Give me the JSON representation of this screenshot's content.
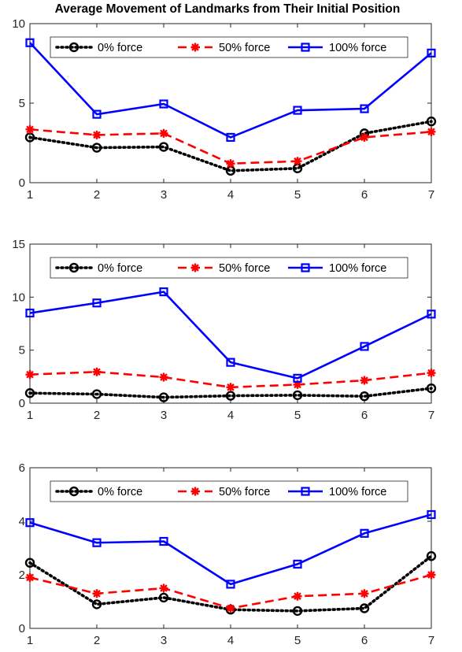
{
  "chart_data": [
    {
      "type": "line",
      "title": "Average Movement of Landmarks from Their Initial Position",
      "x": [
        1,
        2,
        3,
        4,
        5,
        6,
        7
      ],
      "xlim": [
        1,
        7
      ],
      "ylim": [
        0,
        10
      ],
      "xticks": [
        "1",
        "2",
        "3",
        "4",
        "5",
        "6",
        "7"
      ],
      "yticks": [
        "0",
        "5",
        "10"
      ],
      "ytick_values": [
        0,
        5,
        10
      ],
      "grid": false,
      "legend_position": "top-center",
      "legend_orientation": "horizontal",
      "series": [
        {
          "name": "0% force",
          "values": [
            2.85,
            2.2,
            2.25,
            0.75,
            0.9,
            3.1,
            3.85
          ],
          "color": "#000000",
          "line": "dotted",
          "marker": "circle"
        },
        {
          "name": "50% force",
          "values": [
            3.35,
            3.0,
            3.1,
            1.2,
            1.35,
            2.85,
            3.2
          ],
          "color": "#ff0000",
          "line": "dashed",
          "marker": "asterisk"
        },
        {
          "name": "100% force",
          "values": [
            8.8,
            4.3,
            4.95,
            2.85,
            4.55,
            4.65,
            8.15
          ],
          "color": "#0000ff",
          "line": "solid",
          "marker": "square"
        }
      ]
    },
    {
      "type": "line",
      "title": "",
      "x": [
        1,
        2,
        3,
        4,
        5,
        6,
        7
      ],
      "xlim": [
        1,
        7
      ],
      "ylim": [
        0,
        15
      ],
      "xticks": [
        "1",
        "2",
        "3",
        "4",
        "5",
        "6",
        "7"
      ],
      "yticks": [
        "0",
        "5",
        "10",
        "15"
      ],
      "ytick_values": [
        0,
        5,
        10,
        15
      ],
      "grid": false,
      "legend_position": "top-center",
      "legend_orientation": "horizontal",
      "series": [
        {
          "name": "0% force",
          "values": [
            0.95,
            0.85,
            0.55,
            0.7,
            0.75,
            0.65,
            1.4
          ],
          "color": "#000000",
          "line": "dotted",
          "marker": "circle"
        },
        {
          "name": "50% force",
          "values": [
            2.7,
            2.95,
            2.45,
            1.5,
            1.75,
            2.15,
            2.85
          ],
          "color": "#ff0000",
          "line": "dashed",
          "marker": "asterisk"
        },
        {
          "name": "100% force",
          "values": [
            8.5,
            9.45,
            10.5,
            3.85,
            2.35,
            5.35,
            8.4
          ],
          "color": "#0000ff",
          "line": "solid",
          "marker": "square"
        }
      ]
    },
    {
      "type": "line",
      "title": "",
      "x": [
        1,
        2,
        3,
        4,
        5,
        6,
        7
      ],
      "xlim": [
        1,
        7
      ],
      "ylim": [
        0,
        6
      ],
      "xticks": [
        "1",
        "2",
        "3",
        "4",
        "5",
        "6",
        "7"
      ],
      "yticks": [
        "0",
        "2",
        "4",
        "6"
      ],
      "ytick_values": [
        0,
        2,
        4,
        6
      ],
      "grid": false,
      "legend_position": "top-center",
      "legend_orientation": "horizontal",
      "series": [
        {
          "name": "0% force",
          "values": [
            2.45,
            0.9,
            1.15,
            0.7,
            0.65,
            0.75,
            2.7
          ],
          "color": "#000000",
          "line": "dotted",
          "marker": "circle"
        },
        {
          "name": "50% force",
          "values": [
            1.9,
            1.3,
            1.5,
            0.75,
            1.2,
            1.3,
            2.0
          ],
          "color": "#ff0000",
          "line": "dashed",
          "marker": "asterisk"
        },
        {
          "name": "100% force",
          "values": [
            3.95,
            3.2,
            3.25,
            1.65,
            2.4,
            3.55,
            4.25
          ],
          "color": "#0000ff",
          "line": "solid",
          "marker": "square"
        }
      ]
    }
  ]
}
